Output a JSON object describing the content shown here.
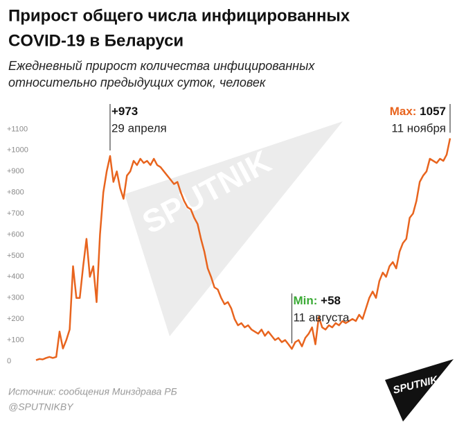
{
  "chart_data": {
    "type": "line",
    "title": [
      "Прирост общего числа инфицированных",
      "COVID-19 в Беларуси"
    ],
    "subtitle": [
      "Ежедневный прирост количества инфицированных",
      "относительно предыдущих суток, человек"
    ],
    "categories": [
      null,
      null,
      null,
      null,
      null,
      null,
      null,
      null,
      null,
      null,
      null,
      null,
      null,
      null,
      null,
      null,
      null,
      null,
      null,
      null,
      null,
      null,
      null,
      null,
      null,
      null,
      null,
      null,
      null,
      null,
      null,
      null,
      null,
      null,
      null,
      null,
      null,
      null,
      null,
      null,
      null,
      null,
      null,
      null,
      null,
      null,
      null,
      null,
      null,
      null,
      null,
      null,
      null,
      null,
      null,
      null,
      null,
      null,
      null,
      null,
      null,
      null,
      null,
      null,
      null,
      null,
      null,
      null,
      null,
      null,
      null,
      null,
      null,
      null,
      null,
      null,
      null,
      null,
      null,
      null,
      null,
      null,
      null,
      null,
      null,
      null,
      null,
      null,
      null,
      null,
      null,
      null,
      null,
      null,
      null,
      null,
      null,
      null,
      null,
      null,
      null,
      null,
      null,
      null,
      null,
      null,
      null,
      null,
      null,
      null,
      null,
      null,
      null,
      null,
      null,
      null,
      null,
      null,
      null,
      null,
      null,
      null,
      null,
      null
    ],
    "series": [
      {
        "color": "#e8641e",
        "values": [
          5,
          10,
          8,
          15,
          20,
          15,
          20,
          140,
          60,
          100,
          150,
          450,
          300,
          300,
          450,
          580,
          400,
          450,
          280,
          600,
          800,
          900,
          973,
          850,
          900,
          820,
          770,
          880,
          900,
          950,
          930,
          960,
          940,
          950,
          930,
          960,
          930,
          920,
          900,
          880,
          860,
          840,
          850,
          800,
          760,
          730,
          720,
          680,
          650,
          580,
          520,
          440,
          400,
          350,
          340,
          300,
          270,
          280,
          250,
          200,
          170,
          180,
          160,
          170,
          150,
          140,
          130,
          150,
          120,
          140,
          120,
          100,
          110,
          90,
          100,
          80,
          58,
          90,
          100,
          70,
          110,
          130,
          160,
          80,
          210,
          160,
          150,
          170,
          160,
          180,
          170,
          190,
          180,
          190,
          200,
          190,
          220,
          200,
          250,
          300,
          330,
          300,
          380,
          420,
          400,
          450,
          470,
          440,
          520,
          560,
          580,
          680,
          700,
          760,
          850,
          880,
          900,
          960,
          950,
          940,
          960,
          950,
          980,
          1057
        ]
      }
    ],
    "ylim": [
      -30,
      1200
    ],
    "yticks": [
      0,
      {
        "value": 100,
        "label": "+100"
      },
      {
        "value": 200,
        "label": "+200"
      },
      {
        "value": 300,
        "label": "+300"
      },
      {
        "value": 400,
        "label": "+400"
      },
      {
        "value": 500,
        "label": "+500"
      },
      {
        "value": 600,
        "label": "+600"
      },
      {
        "value": 700,
        "label": "+700"
      },
      {
        "value": 800,
        "label": "+800"
      },
      {
        "value": 900,
        "label": "+900"
      },
      {
        "value": 1000,
        "label": "+1000"
      },
      {
        "value": 1100,
        "label": "+1100"
      }
    ],
    "annotations": [
      {
        "value": 973,
        "label": "+973",
        "text": "29 апреля"
      },
      {
        "prefix": "Min:",
        "prefix_color": "#3aaa35",
        "value": 58,
        "label": "+58",
        "text": "11 августа"
      },
      {
        "prefix": "Max:",
        "prefix_color": "#e8641e",
        "value": 1057,
        "label": "1057",
        "text": "11 ноября"
      }
    ],
    "source": "Источник: сообщения Минздрава РБ",
    "handle": "@SPUTNIKBY",
    "logo": "SPUTNIK"
  }
}
